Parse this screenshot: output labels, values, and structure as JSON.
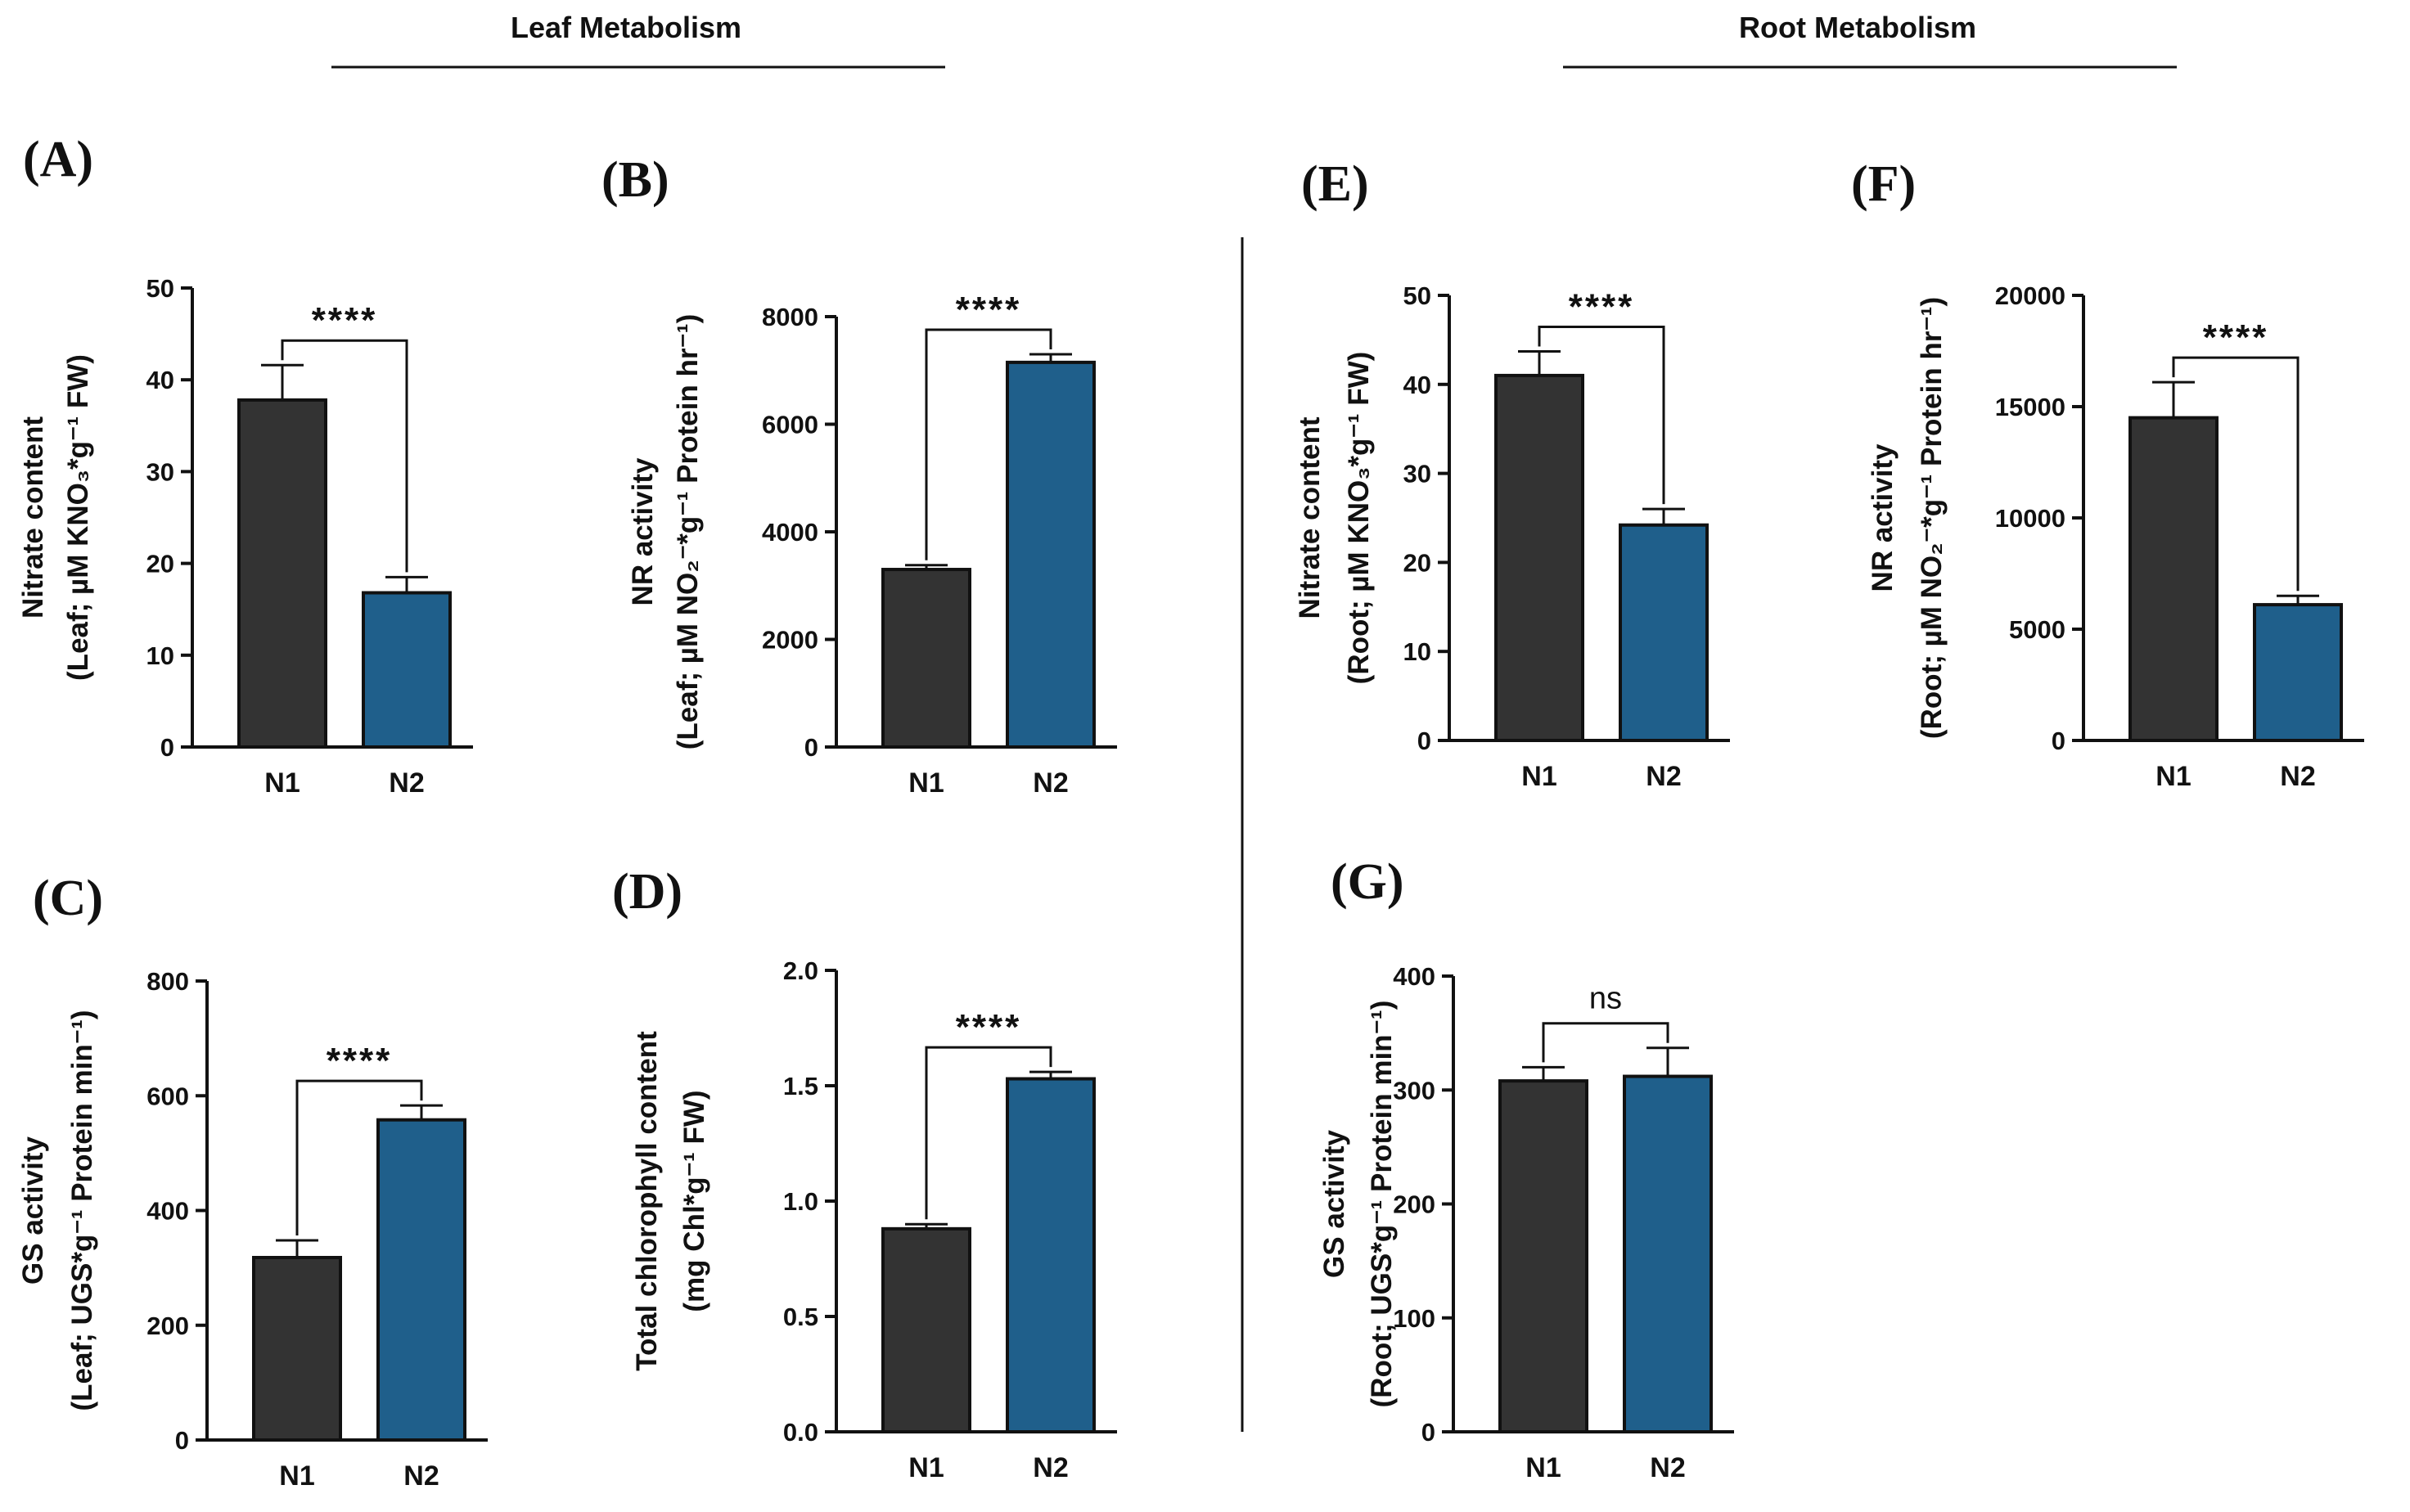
{
  "sections": [
    {
      "id": "leaf",
      "title": "Leaf Metabolism"
    },
    {
      "id": "root",
      "title": "Root Metabolism"
    }
  ],
  "colors": {
    "n1": "#333333",
    "n2": "#1f5f8b",
    "axis": "#111111"
  },
  "chart_data": [
    {
      "panel": "(A)",
      "type": "bar",
      "ylabel_lines": [
        "Nitrate content",
        "(Leaf; µM KNO₃*g⁻¹ FW)"
      ],
      "categories": [
        "N1",
        "N2"
      ],
      "values": [
        37.8,
        16.8
      ],
      "errors": [
        3.8,
        1.7
      ],
      "ylim": [
        0,
        50
      ],
      "yticks": [
        0,
        10,
        20,
        30,
        40,
        50
      ],
      "significance": "****"
    },
    {
      "panel": "(B)",
      "type": "bar",
      "ylabel_lines": [
        "NR activity",
        "(Leaf; µM NO₂⁻*g⁻¹ Protein hr⁻¹)"
      ],
      "categories": [
        "N1",
        "N2"
      ],
      "values": [
        3300,
        7150
      ],
      "errors": [
        80,
        150
      ],
      "ylim": [
        0,
        8000
      ],
      "yticks": [
        0,
        2000,
        4000,
        6000,
        8000
      ],
      "significance": "****"
    },
    {
      "panel": "(C)",
      "type": "bar",
      "ylabel_lines": [
        "GS activity",
        "(Leaf; UGS*g⁻¹ Protein min⁻¹)"
      ],
      "categories": [
        "N1",
        "N2"
      ],
      "values": [
        318,
        558
      ],
      "errors": [
        30,
        25
      ],
      "ylim": [
        0,
        800
      ],
      "yticks": [
        0,
        200,
        400,
        600,
        800
      ],
      "significance": "****"
    },
    {
      "panel": "(D)",
      "type": "bar",
      "ylabel_lines": [
        "Total chlorophyll content",
        "(mg Chl*g⁻¹ FW)"
      ],
      "categories": [
        "N1",
        "N2"
      ],
      "values": [
        0.88,
        1.53
      ],
      "errors": [
        0.02,
        0.03
      ],
      "ylim": [
        0,
        2.0
      ],
      "yticks": [
        "0.0",
        "0.5",
        "1.0",
        "1.5",
        "2.0"
      ],
      "significance": "****"
    },
    {
      "panel": "(E)",
      "type": "bar",
      "ylabel_lines": [
        "Nitrate content",
        "(Root; µM KNO₃*g⁻¹ FW)"
      ],
      "categories": [
        "N1",
        "N2"
      ],
      "values": [
        41,
        24.2
      ],
      "errors": [
        2.7,
        1.8
      ],
      "ylim": [
        0,
        50
      ],
      "yticks": [
        0,
        10,
        20,
        30,
        40,
        50
      ],
      "significance": "****"
    },
    {
      "panel": "(F)",
      "type": "bar",
      "ylabel_lines": [
        "NR activity",
        "(Root; µM NO₂⁻*g⁻¹ Protein hr⁻¹)"
      ],
      "categories": [
        "N1",
        "N2"
      ],
      "values": [
        14500,
        6100
      ],
      "errors": [
        1600,
        400
      ],
      "ylim": [
        0,
        20000
      ],
      "yticks": [
        0,
        5000,
        10000,
        15000,
        20000
      ],
      "significance": "****"
    },
    {
      "panel": "(G)",
      "type": "bar",
      "ylabel_lines": [
        "GS activity",
        "(Root; UGS*g⁻¹ Protein min⁻¹)"
      ],
      "categories": [
        "N1",
        "N2"
      ],
      "values": [
        308,
        312
      ],
      "errors": [
        12,
        25
      ],
      "ylim": [
        0,
        400
      ],
      "yticks": [
        0,
        100,
        200,
        300,
        400
      ],
      "significance": "ns"
    }
  ]
}
